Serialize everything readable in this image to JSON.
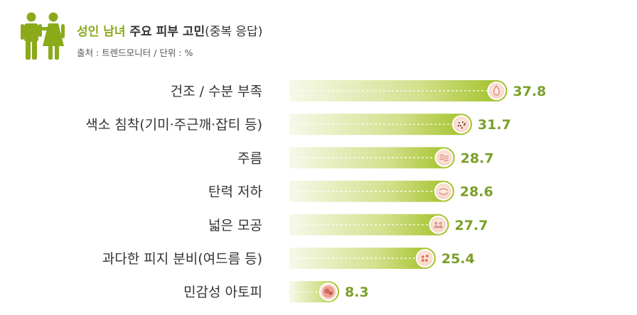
{
  "header": {
    "title_highlight": "성인 남녀",
    "title_main": " 주요 피부 고민",
    "title_note": "(중복 응답)",
    "source": "출처 : 트렌드모니터 / 단위 : %",
    "icon": "man-woman-icon"
  },
  "colors": {
    "accent": "#8aaa1a",
    "value_text": "#7b9f2a",
    "bar_start": "#f7f9ea",
    "bar_end": "#9fbf22"
  },
  "chart_data": {
    "type": "bar",
    "orientation": "horizontal",
    "unit": "%",
    "categories": [
      "건조 / 수분 부족",
      "색소 침착(기미·주근깨·잡티 등)",
      "주름",
      "탄력 저하",
      "넓은 모공",
      "과다한 피지 분비(여드름 등)",
      "민감성 아토피"
    ],
    "values": [
      37.8,
      31.7,
      28.7,
      28.6,
      27.7,
      25.4,
      8.3
    ],
    "bar_end_icons": [
      "water-drop-icon",
      "pigment-spots-icon",
      "wrinkle-icon",
      "elasticity-icon",
      "pore-icon",
      "acne-icon",
      "sensitive-skin-icon"
    ],
    "xlim": [
      0,
      38
    ],
    "grid": false,
    "legend": "none"
  }
}
